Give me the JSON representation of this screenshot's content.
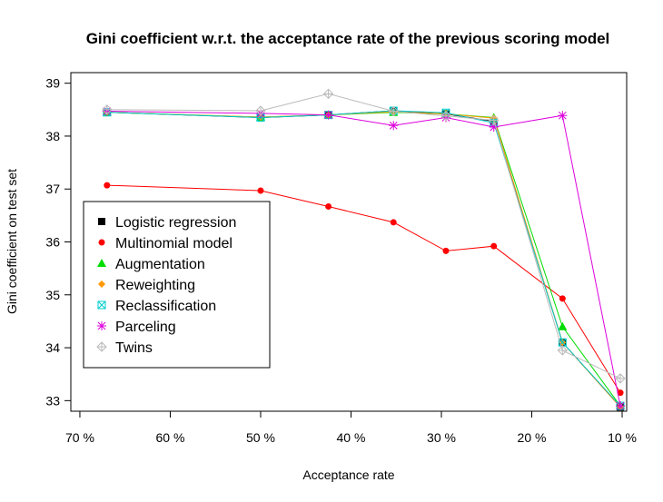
{
  "chart_data": {
    "type": "line",
    "title": "Gini coefficient w.r.t. the acceptance rate of the previous scoring model",
    "xlabel": "Acceptance rate",
    "ylabel": "Gini coefficient on test set",
    "x_axis": {
      "reversed": true,
      "xlim": [
        71,
        9.5
      ],
      "ticks": [
        70,
        60,
        50,
        40,
        30,
        20,
        10
      ],
      "tick_labels": [
        "70 %",
        "60 %",
        "50 %",
        "40 %",
        "30 %",
        "20 %",
        "10 %"
      ]
    },
    "y_axis": {
      "ylim": [
        32.8,
        39.2
      ],
      "ticks": [
        33,
        34,
        35,
        36,
        37,
        38,
        39
      ],
      "tick_labels": [
        "33",
        "34",
        "35",
        "36",
        "37",
        "38",
        "39"
      ]
    },
    "x": [
      67,
      50,
      42.5,
      35.3,
      29.5,
      24.2,
      16.6,
      10.2
    ],
    "series": [
      {
        "name": "Logistic regression",
        "color": "#000000",
        "marker": "square",
        "values": [
          38.45,
          38.35,
          38.4,
          38.48,
          38.42,
          38.28,
          34.1,
          32.88
        ]
      },
      {
        "name": "Multinomial model",
        "color": "#ff0000",
        "marker": "circle",
        "values": [
          37.07,
          36.97,
          36.67,
          36.37,
          35.83,
          35.92,
          34.93,
          33.15
        ]
      },
      {
        "name": "Augmentation",
        "color": "#00dd00",
        "marker": "triangle",
        "values": [
          38.45,
          38.36,
          38.4,
          38.45,
          38.42,
          38.35,
          34.4,
          32.9
        ]
      },
      {
        "name": "Reweighting",
        "color": "#ff9900",
        "marker": "diamond",
        "values": [
          38.45,
          38.36,
          38.4,
          38.46,
          38.42,
          38.34,
          34.1,
          32.88
        ]
      },
      {
        "name": "Reclassification",
        "color": "#00cccc",
        "marker": "boxx",
        "values": [
          38.45,
          38.35,
          38.4,
          38.48,
          38.44,
          38.25,
          34.1,
          32.9
        ]
      },
      {
        "name": "Parceling",
        "color": "#dd00dd",
        "marker": "star",
        "values": [
          38.47,
          38.43,
          38.4,
          38.2,
          38.35,
          38.17,
          38.39,
          32.9
        ]
      },
      {
        "name": "Twins",
        "color": "#bbbbbb",
        "marker": "diamondplus",
        "values": [
          38.5,
          38.48,
          38.8,
          38.47,
          38.38,
          38.3,
          33.95,
          33.42
        ]
      }
    ],
    "legend_position": "left",
    "grid": false
  }
}
